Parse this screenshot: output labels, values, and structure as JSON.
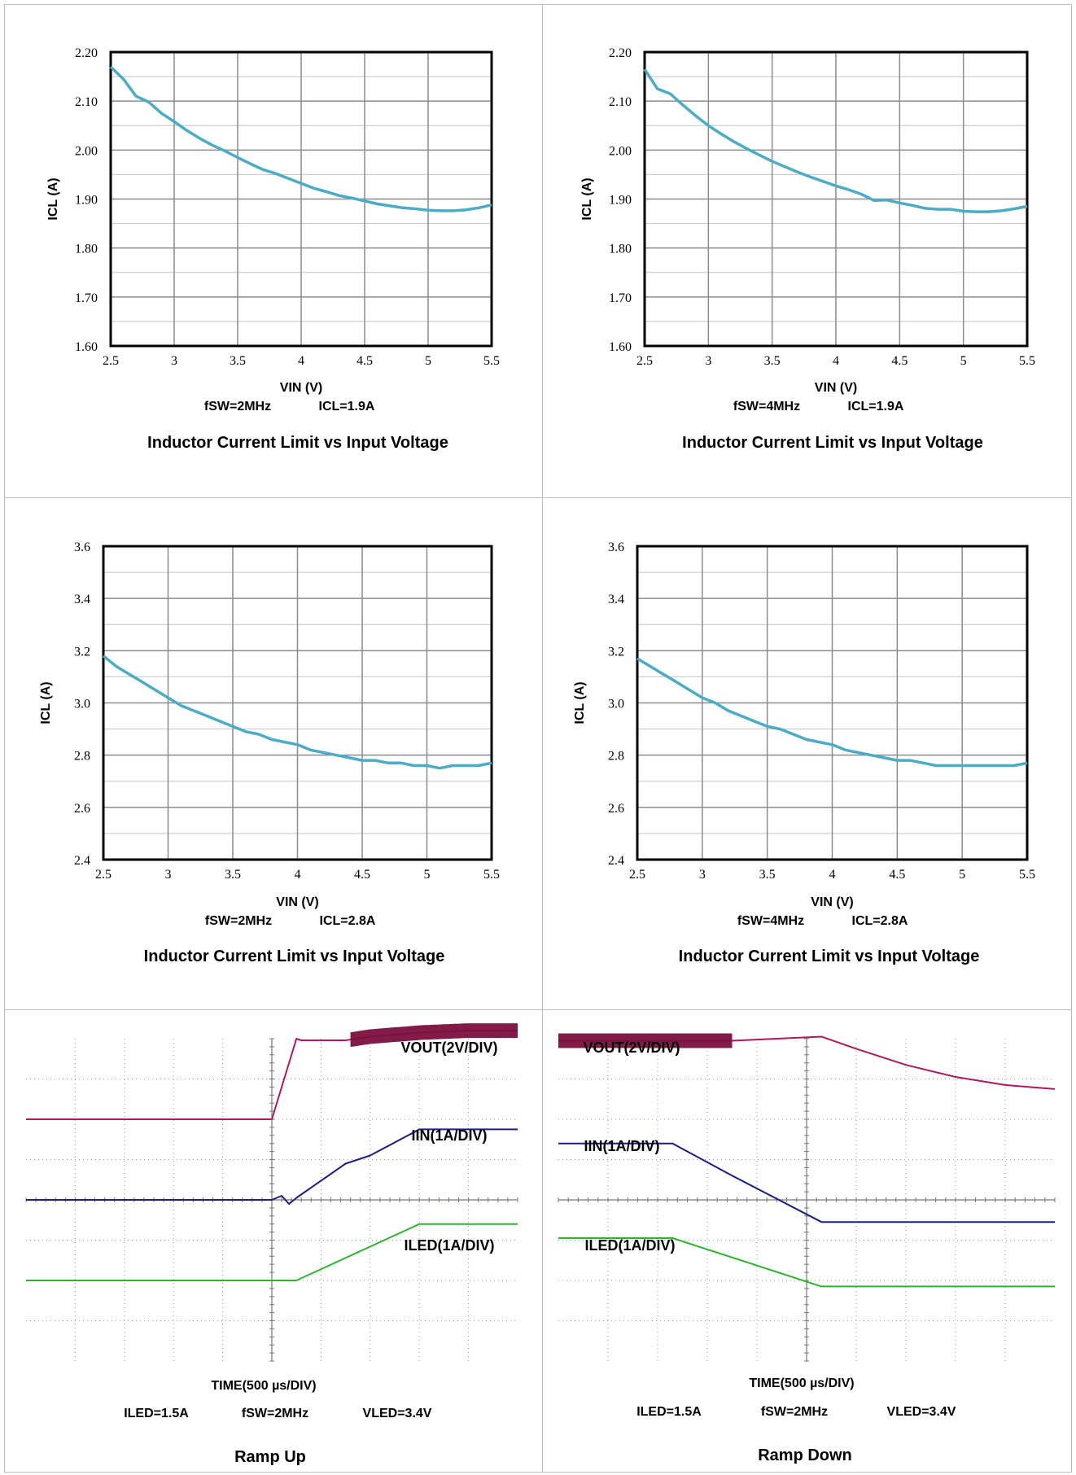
{
  "chart_data": [
    {
      "type": "line",
      "title": "Inductor Current Limit vs Input Voltage",
      "xlabel": "VIN (V)",
      "ylabel": "ICL (A)",
      "conditions": [
        "fSW=2MHz",
        "ICL=1.9A"
      ],
      "xlim": [
        2.5,
        5.5
      ],
      "ylim": [
        1.6,
        2.2
      ],
      "xticks": [
        "2.5",
        "3",
        "3.5",
        "4",
        "4.5",
        "5",
        "5.5"
      ],
      "yticks": [
        "1.60",
        "1.70",
        "1.80",
        "1.90",
        "2.00",
        "2.10",
        "2.20"
      ],
      "grid": true,
      "color": "#4bacc6",
      "x": [
        2.5,
        2.6,
        2.7,
        2.8,
        2.9,
        3.0,
        3.1,
        3.2,
        3.3,
        3.4,
        3.5,
        3.6,
        3.7,
        3.8,
        3.9,
        4.0,
        4.1,
        4.2,
        4.3,
        4.4,
        4.5,
        4.6,
        4.7,
        4.8,
        4.9,
        5.0,
        5.1,
        5.2,
        5.3,
        5.4,
        5.5
      ],
      "y": [
        2.17,
        2.145,
        2.11,
        2.098,
        2.075,
        2.058,
        2.04,
        2.024,
        2.01,
        1.998,
        1.985,
        1.972,
        1.96,
        1.952,
        1.942,
        1.932,
        1.922,
        1.915,
        1.907,
        1.902,
        1.896,
        1.89,
        1.886,
        1.882,
        1.88,
        1.877,
        1.876,
        1.876,
        1.878,
        1.882,
        1.888
      ]
    },
    {
      "type": "line",
      "title": "Inductor Current Limit vs Input Voltage",
      "xlabel": "VIN (V)",
      "ylabel": "ICL (A)",
      "conditions": [
        "fSW=4MHz",
        "ICL=1.9A"
      ],
      "xlim": [
        2.5,
        5.5
      ],
      "ylim": [
        1.6,
        2.2
      ],
      "xticks": [
        "2.5",
        "3",
        "3.5",
        "4",
        "4.5",
        "5",
        "5.5"
      ],
      "yticks": [
        "1.60",
        "1.70",
        "1.80",
        "1.90",
        "2.00",
        "2.10",
        "2.20"
      ],
      "grid": true,
      "color": "#4bacc6",
      "x": [
        2.5,
        2.6,
        2.7,
        2.8,
        2.9,
        3.0,
        3.1,
        3.2,
        3.3,
        3.4,
        3.5,
        3.6,
        3.7,
        3.8,
        3.9,
        4.0,
        4.1,
        4.2,
        4.3,
        4.4,
        4.5,
        4.6,
        4.7,
        4.8,
        4.9,
        5.0,
        5.1,
        5.2,
        5.3,
        5.4,
        5.5
      ],
      "y": [
        2.165,
        2.125,
        2.115,
        2.092,
        2.07,
        2.05,
        2.033,
        2.017,
        2.003,
        1.99,
        1.977,
        1.966,
        1.955,
        1.945,
        1.936,
        1.927,
        1.919,
        1.91,
        1.897,
        1.898,
        1.892,
        1.887,
        1.881,
        1.879,
        1.879,
        1.875,
        1.874,
        1.874,
        1.876,
        1.88,
        1.885
      ]
    },
    {
      "type": "line",
      "title": "Inductor Current Limit vs Input Voltage",
      "xlabel": "VIN (V)",
      "ylabel": "ICL (A)",
      "conditions": [
        "fSW=2MHz",
        "ICL=2.8A"
      ],
      "xlim": [
        2.5,
        5.5
      ],
      "ylim": [
        2.4,
        3.6
      ],
      "xticks": [
        "2.5",
        "3",
        "3.5",
        "4",
        "4.5",
        "5",
        "5.5"
      ],
      "yticks": [
        "2.4",
        "2.6",
        "2.8",
        "3.0",
        "3.2",
        "3.4",
        "3.6"
      ],
      "grid": true,
      "color": "#4bacc6",
      "x": [
        2.5,
        2.6,
        2.7,
        2.8,
        2.9,
        3.0,
        3.1,
        3.2,
        3.3,
        3.4,
        3.5,
        3.6,
        3.7,
        3.8,
        3.9,
        4.0,
        4.1,
        4.2,
        4.3,
        4.4,
        4.5,
        4.6,
        4.7,
        4.8,
        4.9,
        5.0,
        5.1,
        5.2,
        5.3,
        5.4,
        5.5
      ],
      "y": [
        3.18,
        3.14,
        3.11,
        3.08,
        3.05,
        3.02,
        2.99,
        2.97,
        2.95,
        2.93,
        2.91,
        2.89,
        2.88,
        2.86,
        2.85,
        2.84,
        2.82,
        2.81,
        2.8,
        2.79,
        2.78,
        2.78,
        2.77,
        2.77,
        2.76,
        2.76,
        2.75,
        2.76,
        2.76,
        2.76,
        2.77
      ]
    },
    {
      "type": "line",
      "title": "Inductor Current Limit vs Input Voltage",
      "xlabel": "VIN (V)",
      "ylabel": "ICL (A)",
      "conditions": [
        "fSW=4MHz",
        "ICL=2.8A"
      ],
      "xlim": [
        2.5,
        5.5
      ],
      "ylim": [
        2.4,
        3.6
      ],
      "xticks": [
        "2.5",
        "3",
        "3.5",
        "4",
        "4.5",
        "5",
        "5.5"
      ],
      "yticks": [
        "2.4",
        "2.6",
        "2.8",
        "3.0",
        "3.2",
        "3.4",
        "3.6"
      ],
      "grid": true,
      "color": "#4bacc6",
      "x": [
        2.5,
        2.6,
        2.7,
        2.8,
        2.9,
        3.0,
        3.1,
        3.2,
        3.3,
        3.4,
        3.5,
        3.6,
        3.7,
        3.8,
        3.9,
        4.0,
        4.1,
        4.2,
        4.3,
        4.4,
        4.5,
        4.6,
        4.7,
        4.8,
        4.9,
        5.0,
        5.1,
        5.2,
        5.3,
        5.4,
        5.5
      ],
      "y": [
        3.17,
        3.14,
        3.11,
        3.08,
        3.05,
        3.02,
        3.0,
        2.97,
        2.95,
        2.93,
        2.91,
        2.9,
        2.88,
        2.86,
        2.85,
        2.84,
        2.82,
        2.81,
        2.8,
        2.79,
        2.78,
        2.78,
        2.77,
        2.76,
        2.76,
        2.76,
        2.76,
        2.76,
        2.76,
        2.76,
        2.77
      ]
    },
    {
      "type": "line",
      "title": "Ramp Up",
      "xlabel": "TIME(500 µs/DIV)",
      "conditions": [
        "ILED=1.5A",
        "fSW=2MHz",
        "VLED=3.4V"
      ],
      "x_divisions": 10,
      "y_divisions": 8,
      "x_unit": "div",
      "y_unit": "div",
      "series": [
        {
          "name": "VOUT(2V/DIV)",
          "color": "#b0195b",
          "x": [
            0,
            5.0,
            5.5,
            5.6,
            6.5,
            7.0,
            8.0,
            9.0,
            10.0
          ],
          "y": [
            2.0,
            2.0,
            4.0,
            3.96,
            3.96,
            4.05,
            4.15,
            4.2,
            4.2
          ]
        },
        {
          "name": "IIN(1A/DIV)",
          "color": "#1c1c8a",
          "x": [
            0,
            5.0,
            5.2,
            5.35,
            5.5,
            6.5,
            7.0,
            8.0,
            10.0
          ],
          "y": [
            0,
            0,
            0.1,
            -0.1,
            0.05,
            0.9,
            1.1,
            1.75,
            1.75
          ]
        },
        {
          "name": "ILED(1A/DIV)",
          "color": "#2bb52b",
          "x": [
            0,
            5.5,
            8.0,
            10.0
          ],
          "y": [
            -2.0,
            -2.0,
            -0.6,
            -0.6
          ]
        }
      ]
    },
    {
      "type": "line",
      "title": "Ramp Down",
      "xlabel": "TIME(500 µs/DIV)",
      "conditions": [
        "ILED=1.5A",
        "fSW=2MHz",
        "VLED=3.4V"
      ],
      "x_divisions": 10,
      "y_divisions": 8,
      "x_unit": "div",
      "y_unit": "div",
      "series": [
        {
          "name": "VOUT(2V/DIV)",
          "color": "#b0195b",
          "x": [
            0,
            3.5,
            5.3,
            6.0,
            7.0,
            8.0,
            9.0,
            10.0
          ],
          "y": [
            3.95,
            3.95,
            4.05,
            3.75,
            3.35,
            3.05,
            2.85,
            2.75
          ]
        },
        {
          "name": "IIN(1A/DIV)",
          "color": "#1c1c8a",
          "x": [
            0,
            2.3,
            3.5,
            5.3,
            10.0
          ],
          "y": [
            1.4,
            1.4,
            0.6,
            -0.55,
            -0.55
          ]
        },
        {
          "name": "ILED(1A/DIV)",
          "color": "#2bb52b",
          "x": [
            0,
            2.3,
            5.3,
            10.0
          ],
          "y": [
            -0.95,
            -0.95,
            -2.15,
            -2.15
          ]
        }
      ]
    }
  ]
}
